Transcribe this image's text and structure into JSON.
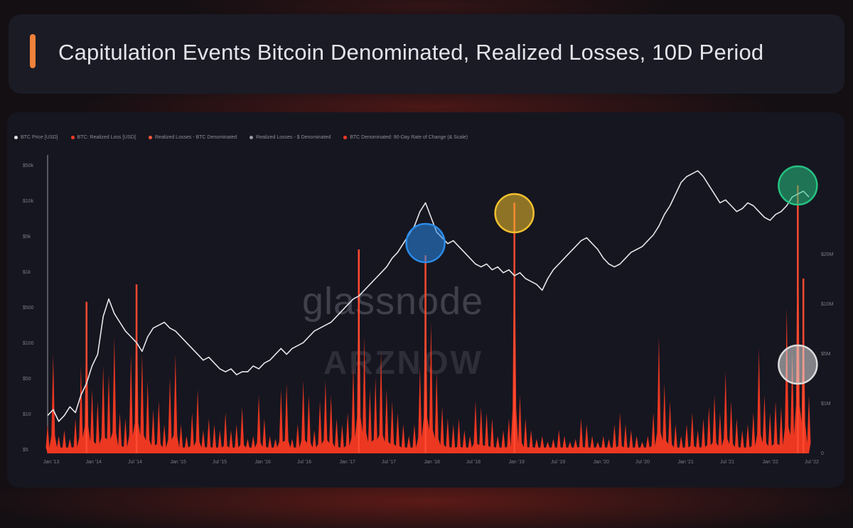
{
  "header": {
    "title": "Capitulation Events Bitcoin Denominated, Realized Losses, 10D Period"
  },
  "colors": {
    "background": "#140f13",
    "card": "#1b1b25",
    "accent": "#f0813a",
    "loss_red": "#ff3b22",
    "price_line": "#e6e6ea",
    "highlight_blue": "#2a8be8",
    "highlight_yellow": "#f2c12e",
    "highlight_green": "#26c282",
    "highlight_white": "#dcdcdc"
  },
  "watermark": {
    "brand": "glassnode",
    "overlay": "ARZNOW"
  },
  "chart_data": {
    "type": "area",
    "title": "Capitulation Events Bitcoin Denominated, Realized Losses, 10D Period",
    "legend": [
      {
        "name": "BTC Price [USD]",
        "color": "#e6e6ea"
      },
      {
        "name": "BTC: Realized Loss [USD]",
        "color": "#ff3b22"
      },
      {
        "name": "Realized Losses - BTC Denominated",
        "color": "#ff5a3a"
      },
      {
        "name": "Realized Losses - $ Denominated",
        "color": "#9a9aa6"
      },
      {
        "name": "BTC Denominated: 90-Day Rate of Change (& Scale)",
        "color": "#ff3b22"
      }
    ],
    "x_ticks": [
      "Jan '13",
      "Jan '14",
      "Jul '14",
      "Jan '15",
      "Jul '15",
      "Jan '16",
      "Jul '16",
      "Jan '17",
      "Jul '17",
      "Jan '18",
      "Jul '18",
      "Jan '19",
      "Jul '19",
      "Jan '20",
      "Jul '20",
      "Jan '21",
      "Jul '21",
      "Jan '22",
      "Jul '22"
    ],
    "y_left_ticks": [
      "$50k",
      "$10k",
      "$5k",
      "$1k",
      "$500",
      "$100",
      "$50",
      "$10",
      "$5"
    ],
    "y_right_ticks": [
      "",
      "$20M",
      "$10M",
      "$5M",
      "$1M",
      "0"
    ],
    "grid": false,
    "legend_position": "top-left",
    "price_series": [
      [
        0,
        0.87
      ],
      [
        1,
        0.85
      ],
      [
        2,
        0.89
      ],
      [
        3,
        0.87
      ],
      [
        4,
        0.84
      ],
      [
        5,
        0.86
      ],
      [
        6,
        0.8
      ],
      [
        7,
        0.76
      ],
      [
        8,
        0.7
      ],
      [
        9,
        0.66
      ],
      [
        10,
        0.53
      ],
      [
        11,
        0.47
      ],
      [
        12,
        0.52
      ],
      [
        13,
        0.55
      ],
      [
        14,
        0.58
      ],
      [
        15,
        0.6
      ],
      [
        16,
        0.62
      ],
      [
        17,
        0.65
      ],
      [
        18,
        0.6
      ],
      [
        19,
        0.57
      ],
      [
        20,
        0.56
      ],
      [
        21,
        0.55
      ],
      [
        22,
        0.57
      ],
      [
        23,
        0.58
      ],
      [
        24,
        0.6
      ],
      [
        25,
        0.62
      ],
      [
        26,
        0.64
      ],
      [
        27,
        0.66
      ],
      [
        28,
        0.68
      ],
      [
        29,
        0.67
      ],
      [
        30,
        0.69
      ],
      [
        31,
        0.71
      ],
      [
        32,
        0.72
      ],
      [
        33,
        0.71
      ],
      [
        34,
        0.73
      ],
      [
        35,
        0.72
      ],
      [
        36,
        0.72
      ],
      [
        37,
        0.7
      ],
      [
        38,
        0.71
      ],
      [
        39,
        0.69
      ],
      [
        40,
        0.68
      ],
      [
        41,
        0.66
      ],
      [
        42,
        0.64
      ],
      [
        43,
        0.66
      ],
      [
        44,
        0.64
      ],
      [
        45,
        0.63
      ],
      [
        46,
        0.62
      ],
      [
        47,
        0.6
      ],
      [
        48,
        0.58
      ],
      [
        49,
        0.57
      ],
      [
        50,
        0.56
      ],
      [
        51,
        0.55
      ],
      [
        52,
        0.53
      ],
      [
        53,
        0.51
      ],
      [
        54,
        0.49
      ],
      [
        55,
        0.47
      ],
      [
        56,
        0.46
      ],
      [
        57,
        0.44
      ],
      [
        58,
        0.42
      ],
      [
        59,
        0.4
      ],
      [
        60,
        0.38
      ],
      [
        61,
        0.36
      ],
      [
        62,
        0.33
      ],
      [
        63,
        0.31
      ],
      [
        64,
        0.28
      ],
      [
        65,
        0.25
      ],
      [
        66,
        0.22
      ],
      [
        67,
        0.17
      ],
      [
        68,
        0.14
      ],
      [
        69,
        0.19
      ],
      [
        70,
        0.24
      ],
      [
        71,
        0.26
      ],
      [
        72,
        0.28
      ],
      [
        73,
        0.27
      ],
      [
        74,
        0.29
      ],
      [
        75,
        0.31
      ],
      [
        76,
        0.33
      ],
      [
        77,
        0.35
      ],
      [
        78,
        0.36
      ],
      [
        79,
        0.35
      ],
      [
        80,
        0.37
      ],
      [
        81,
        0.36
      ],
      [
        82,
        0.38
      ],
      [
        83,
        0.37
      ],
      [
        84,
        0.39
      ],
      [
        85,
        0.38
      ],
      [
        86,
        0.4
      ],
      [
        87,
        0.41
      ],
      [
        88,
        0.42
      ],
      [
        89,
        0.44
      ],
      [
        90,
        0.4
      ],
      [
        91,
        0.37
      ],
      [
        92,
        0.35
      ],
      [
        93,
        0.33
      ],
      [
        94,
        0.31
      ],
      [
        95,
        0.29
      ],
      [
        96,
        0.27
      ],
      [
        97,
        0.26
      ],
      [
        98,
        0.28
      ],
      [
        99,
        0.3
      ],
      [
        100,
        0.33
      ],
      [
        101,
        0.35
      ],
      [
        102,
        0.36
      ],
      [
        103,
        0.35
      ],
      [
        104,
        0.33
      ],
      [
        105,
        0.31
      ],
      [
        106,
        0.3
      ],
      [
        107,
        0.29
      ],
      [
        108,
        0.27
      ],
      [
        109,
        0.25
      ],
      [
        110,
        0.22
      ],
      [
        111,
        0.18
      ],
      [
        112,
        0.15
      ],
      [
        113,
        0.11
      ],
      [
        114,
        0.07
      ],
      [
        115,
        0.05
      ],
      [
        116,
        0.04
      ],
      [
        117,
        0.03
      ],
      [
        118,
        0.05
      ],
      [
        119,
        0.08
      ],
      [
        120,
        0.11
      ],
      [
        121,
        0.14
      ],
      [
        122,
        0.13
      ],
      [
        123,
        0.15
      ],
      [
        124,
        0.17
      ],
      [
        125,
        0.16
      ],
      [
        126,
        0.14
      ],
      [
        127,
        0.15
      ],
      [
        128,
        0.17
      ],
      [
        129,
        0.19
      ],
      [
        130,
        0.2
      ],
      [
        131,
        0.18
      ],
      [
        132,
        0.17
      ],
      [
        133,
        0.15
      ],
      [
        134,
        0.12
      ],
      [
        135,
        0.11
      ],
      [
        136,
        0.1
      ],
      [
        137,
        0.12
      ]
    ],
    "loss_spikes": [
      [
        0,
        0.1
      ],
      [
        1,
        0.34
      ],
      [
        2,
        0.06
      ],
      [
        3,
        0.08
      ],
      [
        4,
        0.05
      ],
      [
        5,
        0.12
      ],
      [
        6,
        0.3
      ],
      [
        7,
        0.52
      ],
      [
        8,
        0.22
      ],
      [
        9,
        0.18
      ],
      [
        10,
        0.3
      ],
      [
        11,
        0.27
      ],
      [
        12,
        0.4
      ],
      [
        13,
        0.14
      ],
      [
        14,
        0.12
      ],
      [
        15,
        0.34
      ],
      [
        16,
        0.58
      ],
      [
        17,
        0.34
      ],
      [
        18,
        0.25
      ],
      [
        19,
        0.15
      ],
      [
        20,
        0.18
      ],
      [
        21,
        0.1
      ],
      [
        22,
        0.26
      ],
      [
        23,
        0.34
      ],
      [
        24,
        0.1
      ],
      [
        25,
        0.06
      ],
      [
        26,
        0.14
      ],
      [
        27,
        0.22
      ],
      [
        28,
        0.08
      ],
      [
        29,
        0.12
      ],
      [
        30,
        0.1
      ],
      [
        31,
        0.08
      ],
      [
        32,
        0.14
      ],
      [
        33,
        0.08
      ],
      [
        34,
        0.1
      ],
      [
        35,
        0.16
      ],
      [
        36,
        0.05
      ],
      [
        37,
        0.06
      ],
      [
        38,
        0.2
      ],
      [
        39,
        0.12
      ],
      [
        40,
        0.06
      ],
      [
        41,
        0.05
      ],
      [
        42,
        0.22
      ],
      [
        43,
        0.24
      ],
      [
        44,
        0.05
      ],
      [
        45,
        0.1
      ],
      [
        46,
        0.25
      ],
      [
        47,
        0.2
      ],
      [
        48,
        0.08
      ],
      [
        49,
        0.18
      ],
      [
        50,
        0.25
      ],
      [
        51,
        0.2
      ],
      [
        52,
        0.12
      ],
      [
        53,
        0.1
      ],
      [
        54,
        0.14
      ],
      [
        55,
        0.3
      ],
      [
        56,
        0.7
      ],
      [
        57,
        0.4
      ],
      [
        58,
        0.22
      ],
      [
        59,
        0.26
      ],
      [
        60,
        0.35
      ],
      [
        61,
        0.22
      ],
      [
        62,
        0.18
      ],
      [
        63,
        0.14
      ],
      [
        64,
        0.1
      ],
      [
        65,
        0.06
      ],
      [
        66,
        0.1
      ],
      [
        67,
        0.3
      ],
      [
        68,
        0.68
      ],
      [
        69,
        0.45
      ],
      [
        70,
        0.28
      ],
      [
        71,
        0.16
      ],
      [
        72,
        0.12
      ],
      [
        73,
        0.1
      ],
      [
        74,
        0.12
      ],
      [
        75,
        0.08
      ],
      [
        76,
        0.06
      ],
      [
        77,
        0.18
      ],
      [
        78,
        0.16
      ],
      [
        79,
        0.14
      ],
      [
        80,
        0.12
      ],
      [
        81,
        0.06
      ],
      [
        82,
        0.08
      ],
      [
        83,
        0.12
      ],
      [
        84,
        0.86
      ],
      [
        85,
        0.2
      ],
      [
        86,
        0.12
      ],
      [
        87,
        0.08
      ],
      [
        88,
        0.05
      ],
      [
        89,
        0.06
      ],
      [
        90,
        0.04
      ],
      [
        91,
        0.05
      ],
      [
        92,
        0.08
      ],
      [
        93,
        0.06
      ],
      [
        94,
        0.04
      ],
      [
        95,
        0.05
      ],
      [
        96,
        0.12
      ],
      [
        97,
        0.1
      ],
      [
        98,
        0.06
      ],
      [
        99,
        0.04
      ],
      [
        100,
        0.06
      ],
      [
        101,
        0.05
      ],
      [
        102,
        0.1
      ],
      [
        103,
        0.14
      ],
      [
        104,
        0.1
      ],
      [
        105,
        0.08
      ],
      [
        106,
        0.06
      ],
      [
        107,
        0.04
      ],
      [
        108,
        0.06
      ],
      [
        109,
        0.14
      ],
      [
        110,
        0.4
      ],
      [
        111,
        0.24
      ],
      [
        112,
        0.18
      ],
      [
        113,
        0.1
      ],
      [
        114,
        0.06
      ],
      [
        115,
        0.1
      ],
      [
        116,
        0.14
      ],
      [
        117,
        0.08
      ],
      [
        118,
        0.12
      ],
      [
        119,
        0.16
      ],
      [
        120,
        0.2
      ],
      [
        121,
        0.14
      ],
      [
        122,
        0.28
      ],
      [
        123,
        0.18
      ],
      [
        124,
        0.12
      ],
      [
        125,
        0.08
      ],
      [
        126,
        0.1
      ],
      [
        127,
        0.14
      ],
      [
        128,
        0.36
      ],
      [
        129,
        0.2
      ],
      [
        130,
        0.14
      ],
      [
        131,
        0.18
      ],
      [
        132,
        0.16
      ],
      [
        133,
        0.5
      ],
      [
        134,
        0.35
      ],
      [
        135,
        0.92
      ],
      [
        136,
        0.6
      ],
      [
        137,
        0.2
      ]
    ],
    "highlights": [
      {
        "color": "blue",
        "x_index": 68
      },
      {
        "color": "yellow",
        "x_index": 84
      },
      {
        "color": "green",
        "x_index": 135
      },
      {
        "color": "white",
        "x_index": 135
      }
    ]
  }
}
